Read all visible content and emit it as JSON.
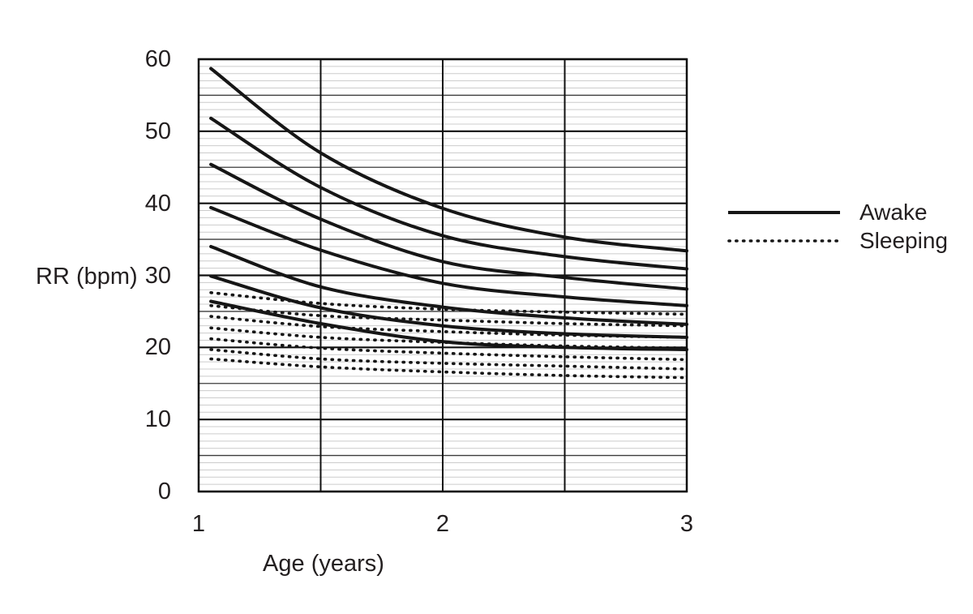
{
  "chart_data": {
    "type": "line",
    "title": "",
    "xlabel": "Age (years)",
    "ylabel": "RR (bpm)",
    "xlim": [
      1,
      3
    ],
    "ylim": [
      0,
      60
    ],
    "x_ticks": [
      1,
      2,
      3
    ],
    "y_ticks": [
      0,
      10,
      20,
      30,
      40,
      50,
      60
    ],
    "grid": {
      "horizontal_minor_step": 1,
      "horizontal_mid_step": 5,
      "horizontal_major_step": 10,
      "vertical_lines": [
        1.5,
        2,
        2.5
      ],
      "minor_color": "#cccccc",
      "mid_color": "#3c3c3c",
      "major_color": "#101010"
    },
    "legend": [
      {
        "label": "Awake",
        "style": "solid"
      },
      {
        "label": "Sleeping",
        "style": "dotted"
      }
    ],
    "legend_position": "right",
    "curve_color": "#161616",
    "sample_ages": [
      1.05,
      1.5,
      2.0,
      2.5,
      3.0
    ],
    "series": [
      {
        "name": "awake-curve-1",
        "group": "Awake",
        "style": "solid",
        "values": [
          58.7,
          47.0,
          39.3,
          35.3,
          33.4
        ]
      },
      {
        "name": "awake-curve-2",
        "group": "Awake",
        "style": "solid",
        "values": [
          51.8,
          42.2,
          35.5,
          32.6,
          30.9
        ]
      },
      {
        "name": "awake-curve-3",
        "group": "Awake",
        "style": "solid",
        "values": [
          45.4,
          37.8,
          31.9,
          29.7,
          28.1
        ]
      },
      {
        "name": "awake-curve-4",
        "group": "Awake",
        "style": "solid",
        "values": [
          39.4,
          33.5,
          28.9,
          27.0,
          25.8
        ]
      },
      {
        "name": "awake-curve-5",
        "group": "Awake",
        "style": "solid",
        "values": [
          34.0,
          28.4,
          25.6,
          24.1,
          23.2
        ]
      },
      {
        "name": "awake-curve-6",
        "group": "Awake",
        "style": "solid",
        "values": [
          29.9,
          25.5,
          23.0,
          21.9,
          21.4
        ]
      },
      {
        "name": "awake-curve-7",
        "group": "Awake",
        "style": "solid",
        "values": [
          26.4,
          23.3,
          20.8,
          20.0,
          19.7
        ]
      },
      {
        "name": "sleeping-curve-1",
        "group": "Sleeping",
        "style": "dotted",
        "values": [
          27.6,
          26.1,
          25.3,
          24.9,
          24.6
        ]
      },
      {
        "name": "sleeping-curve-2",
        "group": "Sleeping",
        "style": "dotted",
        "values": [
          25.8,
          24.4,
          23.8,
          23.3,
          23.0
        ]
      },
      {
        "name": "sleeping-curve-3",
        "group": "Sleeping",
        "style": "dotted",
        "values": [
          24.3,
          22.9,
          22.2,
          21.7,
          21.4
        ]
      },
      {
        "name": "sleeping-curve-4",
        "group": "Sleeping",
        "style": "dotted",
        "values": [
          22.7,
          21.4,
          20.7,
          20.2,
          19.9
        ]
      },
      {
        "name": "sleeping-curve-5",
        "group": "Sleeping",
        "style": "dotted",
        "values": [
          21.2,
          19.9,
          19.2,
          18.7,
          18.3
        ]
      },
      {
        "name": "sleeping-curve-6",
        "group": "Sleeping",
        "style": "dotted",
        "values": [
          19.7,
          18.4,
          17.8,
          17.4,
          17.0
        ]
      },
      {
        "name": "sleeping-curve-7",
        "group": "Sleeping",
        "style": "dotted",
        "values": [
          18.4,
          17.3,
          16.6,
          16.1,
          15.8
        ]
      }
    ]
  }
}
